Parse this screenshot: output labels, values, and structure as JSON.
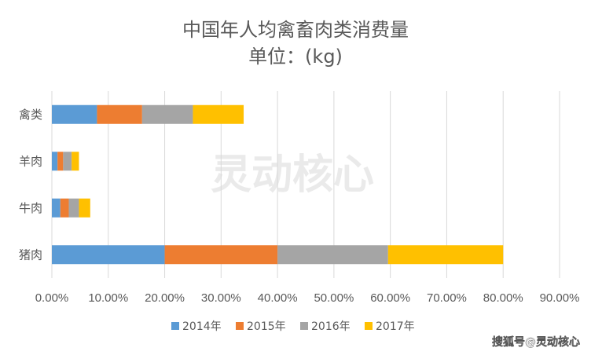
{
  "chart_data": {
    "type": "bar",
    "orientation": "horizontal",
    "stacked": true,
    "title": "中国年人均禽畜肉类消费量",
    "subtitle": "单位：(kg)",
    "categories": [
      "禽类",
      "羊肉",
      "牛肉",
      "猪肉"
    ],
    "series": [
      {
        "name": "2014年",
        "color": "#5b9bd5",
        "values": [
          8.0,
          1.0,
          1.5,
          20.0
        ]
      },
      {
        "name": "2015年",
        "color": "#ed7d31",
        "values": [
          8.0,
          1.0,
          1.5,
          20.0
        ]
      },
      {
        "name": "2016年",
        "color": "#a5a5a5",
        "values": [
          9.0,
          1.5,
          1.8,
          19.6
        ]
      },
      {
        "name": "2017年",
        "color": "#ffc000",
        "values": [
          9.0,
          1.3,
          2.0,
          20.4
        ]
      }
    ],
    "xlim": [
      0,
      90
    ],
    "xticks": [
      "0.00%",
      "10.00%",
      "20.00%",
      "30.00%",
      "40.00%",
      "50.00%",
      "60.00%",
      "70.00%",
      "80.00%",
      "90.00%"
    ],
    "grid": true,
    "legend": "bottom"
  },
  "watermark": {
    "center": "灵动核心",
    "corner": "搜狐号@灵动核心"
  }
}
